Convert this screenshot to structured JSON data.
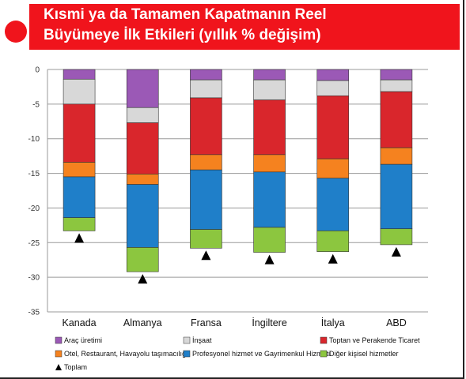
{
  "title": {
    "line1": "Kısmi ya da Tamamen Kapatmanın Reel",
    "line2": "Büyümeye İlk Etkileri (yıllık % değişim)"
  },
  "colors": {
    "header": "#f0141c",
    "Araç üretimi": "#9b59b6",
    "İnşaat": "#d8d8d8",
    "Toptan ve Perakende Ticaret": "#d9262c",
    "Otel, Restaurant, Havayolu taşımacılığı": "#f5821f",
    "Profesyonel hizmet ve Gayrimenkul Hizmeti": "#1f7fc9",
    "Diğer kişisel hizmetler": "#8cc63f",
    "Toplam": "#000000"
  },
  "chart_data": {
    "type": "bar",
    "stacked": true,
    "categories": [
      "Kanada",
      "Almanya",
      "Fransa",
      "İngiltere",
      "İtalya",
      "ABD"
    ],
    "ylim": [
      -35,
      0
    ],
    "yticks": [
      0,
      -5,
      -10,
      -15,
      -20,
      -25,
      -30,
      -35
    ],
    "grid": true,
    "legend_position": "bottom",
    "series": [
      {
        "name": "Araç üretimi",
        "values": [
          -1.4,
          -5.5,
          -1.5,
          -1.5,
          -1.6,
          -1.5
        ]
      },
      {
        "name": "İnşaat",
        "values": [
          -3.6,
          -2.2,
          -2.6,
          -2.9,
          -2.2,
          -1.7
        ]
      },
      {
        "name": "Toptan ve Perakende Ticaret",
        "values": [
          -8.4,
          -7.4,
          -8.2,
          -7.9,
          -9.1,
          -8.1
        ]
      },
      {
        "name": "Otel, Restaurant, Havayolu taşımacılığı",
        "values": [
          -2.1,
          -1.5,
          -2.2,
          -2.5,
          -2.8,
          -2.4
        ]
      },
      {
        "name": "Profesyonel hizmet ve Gayrimenkul Hizmeti",
        "values": [
          -5.9,
          -9.1,
          -8.6,
          -8.0,
          -7.6,
          -9.3
        ]
      },
      {
        "name": "Diğer kişisel hizmetler",
        "values": [
          -1.9,
          -3.5,
          -2.7,
          -3.6,
          -3.0,
          -2.3
        ]
      }
    ],
    "total": {
      "name": "Toplam",
      "values": [
        -23.3,
        -29.2,
        -25.8,
        -26.4,
        -26.3,
        -25.3
      ]
    },
    "legend": [
      "Araç üretimi",
      "İnşaat",
      "Toptan ve Perakende Ticaret",
      "Otel, Restaurant, Havayolu taşımacılığı",
      "Profesyonel hizmet ve Gayrimenkul Hizmeti",
      "Diğer kişisel hizmetler",
      "Toplam"
    ]
  }
}
